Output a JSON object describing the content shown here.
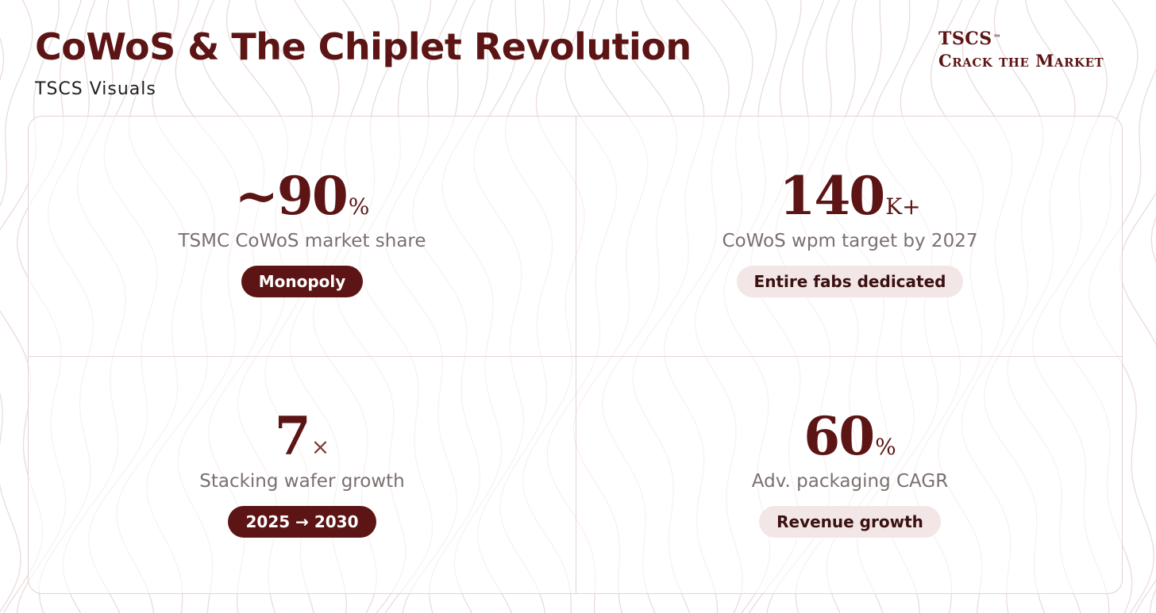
{
  "header": {
    "title": "CoWoS & The Chiplet Revolution",
    "subtitle": "TSCS Visuals"
  },
  "brand": {
    "name": "TSCS",
    "trademark": "™",
    "tagline": "Crack the Market"
  },
  "stats": [
    {
      "value": "~90",
      "unit": "%",
      "label": "TSMC CoWoS market share",
      "badge": "Monopoly",
      "badge_style": "dark"
    },
    {
      "value": "140",
      "unit": "K+",
      "label": "CoWoS wpm target by 2027",
      "badge": "Entire fabs dedicated",
      "badge_style": "light"
    },
    {
      "value": "7",
      "unit": "×",
      "label": "Stacking wafer growth",
      "badge": "2025 → 2030",
      "badge_style": "dark"
    },
    {
      "value": "60",
      "unit": "%",
      "label": "Adv. packaging CAGR",
      "badge": "Revenue growth",
      "badge_style": "light"
    }
  ],
  "colors": {
    "accent": "#5c1414",
    "badge_light_bg": "#f3e6e6",
    "label_gray": "#7b6f6f",
    "divider": "#e4d2d2"
  }
}
